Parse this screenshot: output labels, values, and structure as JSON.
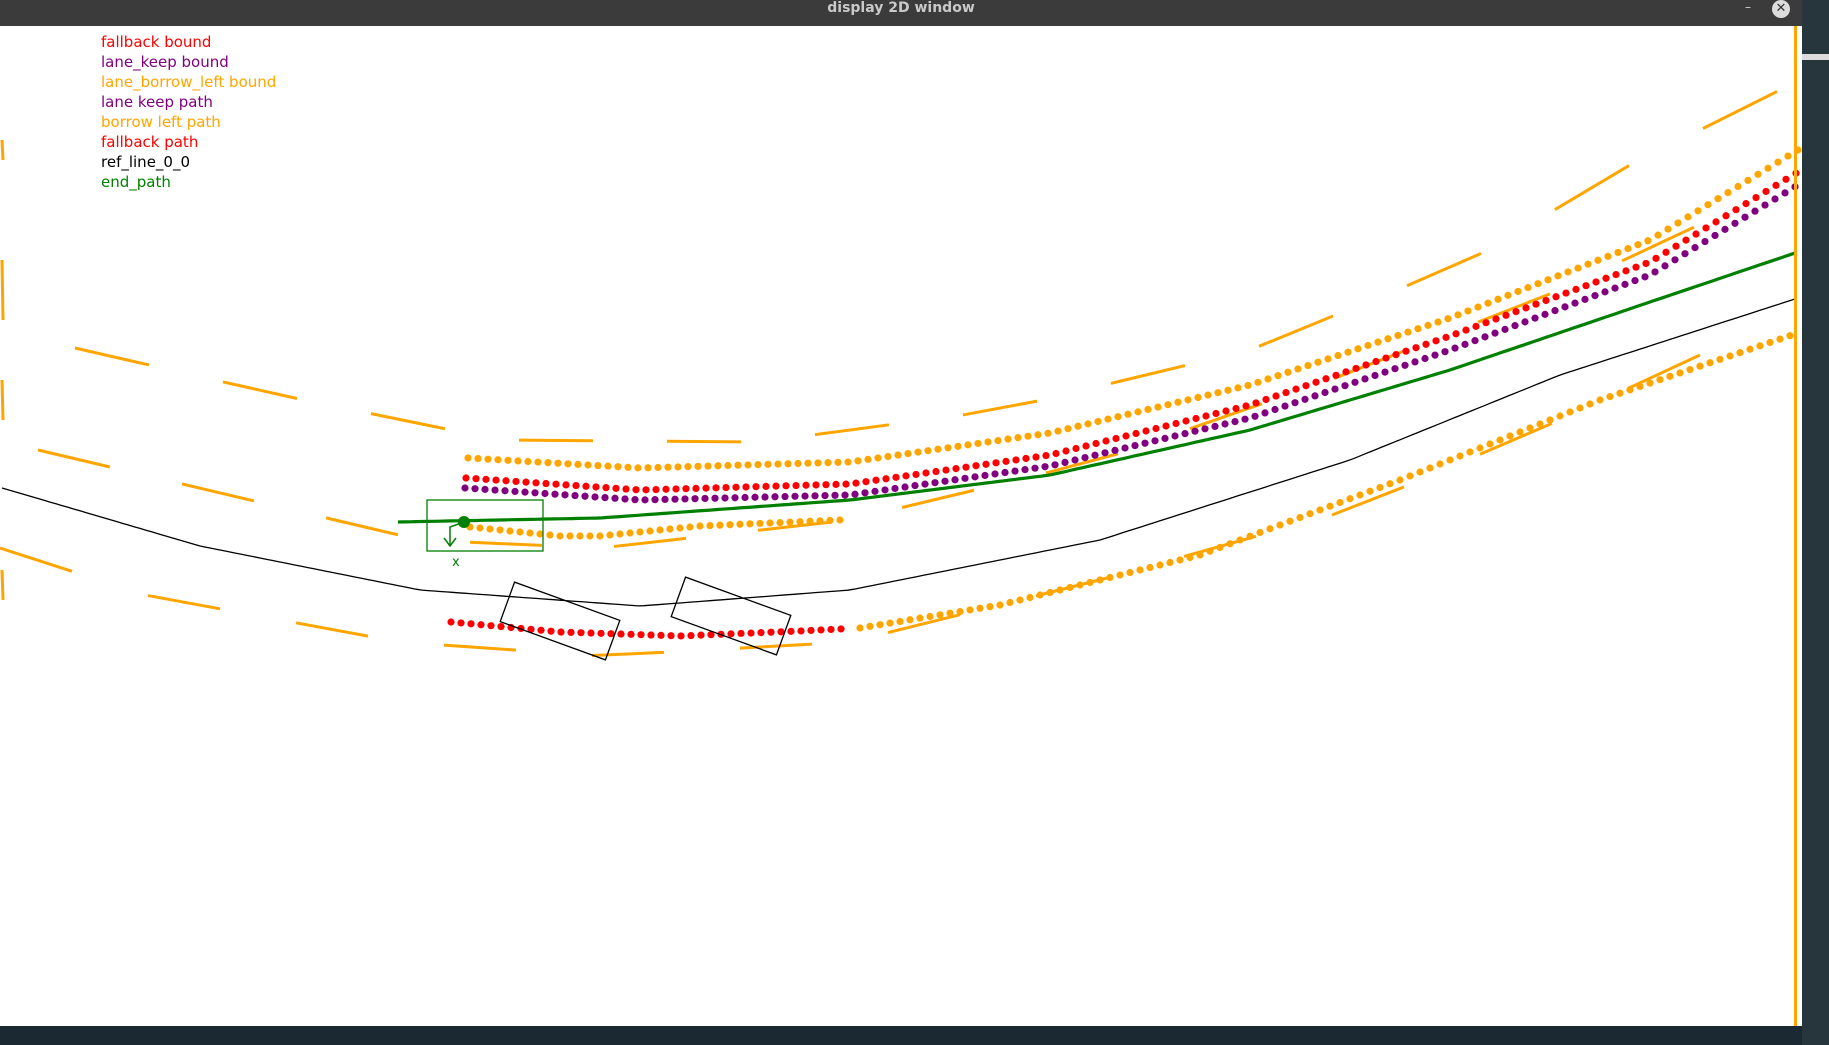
{
  "window": {
    "title": "display 2D window",
    "close_label": "✕",
    "minimize_label": "–"
  },
  "legend": [
    {
      "label": "fallback bound",
      "color": "#ff0000"
    },
    {
      "label": "lane_keep bound",
      "color": "#800080"
    },
    {
      "label": "lane_borrow_left bound",
      "color": "#ffa500"
    },
    {
      "label": "lane keep path",
      "color": "#800080"
    },
    {
      "label": "borrow left path",
      "color": "#ffa500"
    },
    {
      "label": "fallback path",
      "color": "#ff0000"
    },
    {
      "label": "ref_line_0_0",
      "color": "#000000"
    },
    {
      "label": "end_path",
      "color": "#008000"
    }
  ],
  "ego": {
    "axis_label": "x",
    "color": "#008000"
  },
  "colors": {
    "orange": "#ffa500",
    "red": "#ff0000",
    "purple": "#800080",
    "green": "#008000",
    "black": "#000000"
  }
}
